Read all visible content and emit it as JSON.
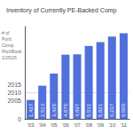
{
  "chart_data": {
    "type": "bar",
    "title": "Inventory of Currently PE-Backed Comp",
    "categories": [
      "'03",
      "'04",
      "'05",
      "'06",
      "'07",
      "'08",
      "'09",
      "'10",
      "'11"
    ],
    "values": [
      1437,
      2513,
      3425,
      4870,
      4897,
      5531,
      5821,
      6237,
      6500
    ],
    "value_labels": [
      "1,437",
      "2,513",
      "3,425",
      "4,870",
      "4,897",
      "5,531",
      "5,821",
      "6,237",
      "6,500"
    ],
    "data_labels": true,
    "ylim": [
      0,
      7000
    ],
    "yticks": [
      0,
      2005,
      2010,
      2015
    ],
    "grid": true,
    "annotations": [
      "# of",
      "Portf.",
      "Comp.",
      "PitchBook",
      "1/25/25"
    ]
  }
}
